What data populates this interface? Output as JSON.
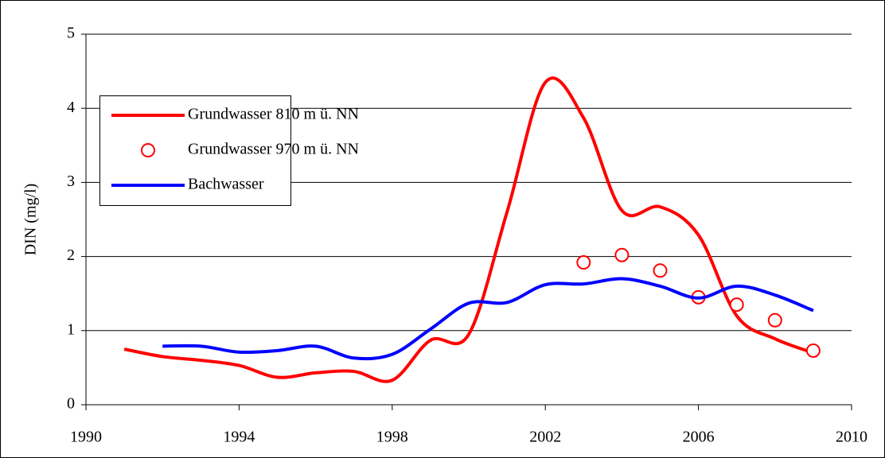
{
  "chart_data": {
    "type": "line",
    "y_label": "DIN  (mg/l)",
    "xlim": [
      1990,
      2010
    ],
    "xticks": [
      1990,
      1994,
      1998,
      2002,
      2006,
      2010
    ],
    "ylim": [
      0,
      5
    ],
    "yticks": [
      0,
      1,
      2,
      3,
      4,
      5
    ],
    "grid": true,
    "legend": "upper left",
    "series": [
      {
        "name": "Grundwasser 810 m ü. NN",
        "color": "#ff0000",
        "mode": "line",
        "x": [
          1991,
          1992,
          1993,
          1994,
          1995,
          1996,
          1997,
          1998,
          1999,
          2000,
          2001,
          2002,
          2003,
          2004,
          2005,
          2006,
          2007,
          2008,
          2009
        ],
        "values": [
          0.75,
          0.65,
          0.6,
          0.53,
          0.37,
          0.43,
          0.45,
          0.33,
          0.87,
          0.95,
          2.6,
          4.35,
          3.87,
          2.62,
          2.67,
          2.29,
          1.2,
          0.89,
          0.7
        ]
      },
      {
        "name": "Grundwasser 970 m ü. NN",
        "color": "#ff0000",
        "mode": "markers",
        "x": [
          2003,
          2004,
          2005,
          2006,
          2007,
          2008,
          2009
        ],
        "values": [
          1.92,
          2.02,
          1.81,
          1.45,
          1.35,
          1.14,
          0.73
        ]
      },
      {
        "name": "Bachwasser",
        "color": "#0000ff",
        "mode": "line",
        "x": [
          1992,
          1993,
          1994,
          1995,
          1996,
          1997,
          1998,
          1999,
          2000,
          2001,
          2002,
          2003,
          2004,
          2005,
          2006,
          2007,
          2008,
          2009
        ],
        "values": [
          0.79,
          0.79,
          0.71,
          0.73,
          0.79,
          0.63,
          0.68,
          1.02,
          1.37,
          1.38,
          1.62,
          1.63,
          1.7,
          1.6,
          1.44,
          1.6,
          1.48,
          1.27
        ]
      }
    ]
  }
}
